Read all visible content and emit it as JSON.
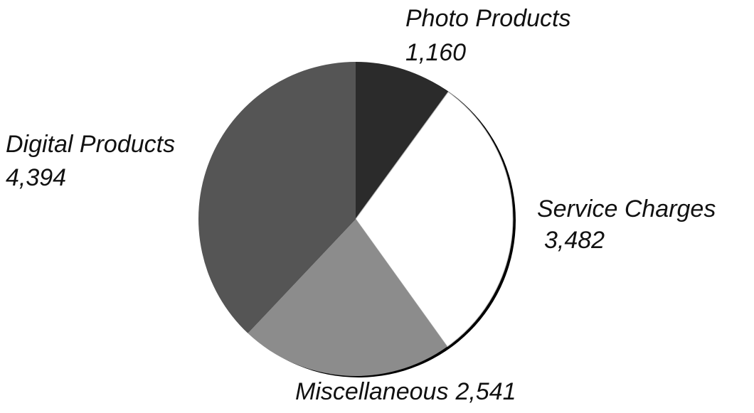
{
  "chart_data": {
    "type": "pie",
    "categories": [
      "Photo Products",
      "Service Charges",
      "Miscellaneous",
      "Digital Products"
    ],
    "values": [
      1160,
      3482,
      2541,
      4394
    ],
    "value_labels": [
      "1,160",
      "3,482",
      "2,541",
      "4,394"
    ],
    "colors": [
      "#2b2b2b",
      "#ffffff",
      "#8c8c8c",
      "#555555"
    ]
  }
}
